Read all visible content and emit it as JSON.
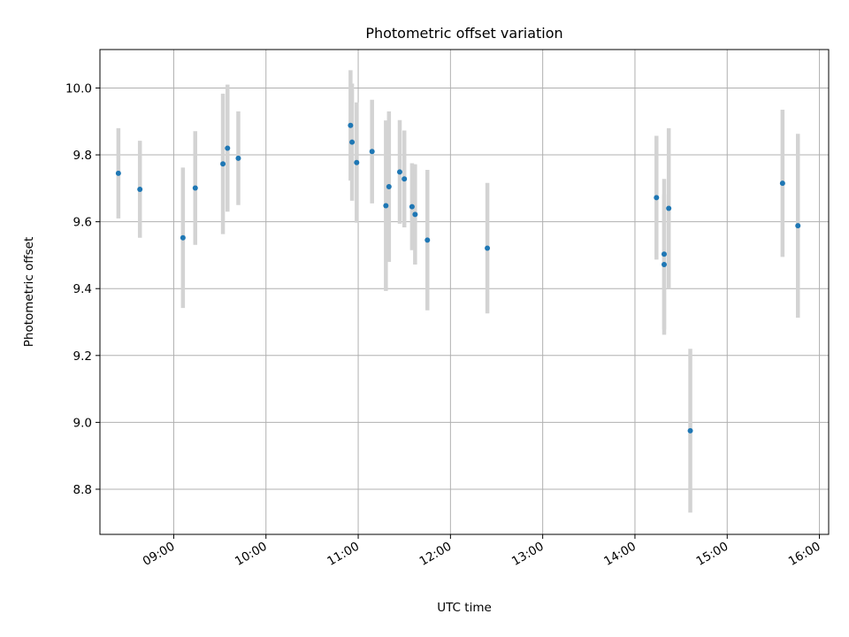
{
  "chart_data": {
    "type": "scatter",
    "title": "Photometric offset variation",
    "xlabel": "UTC time",
    "ylabel": "Photometric offset",
    "xlim": [
      "08:12",
      "16:06"
    ],
    "ylim": [
      8.665,
      10.115
    ],
    "x_ticks": [
      "09:00",
      "10:00",
      "11:00",
      "12:00",
      "13:00",
      "14:00",
      "15:00",
      "16:00"
    ],
    "y_ticks": [
      8.8,
      9.0,
      9.2,
      9.4,
      9.6,
      9.8,
      10.0
    ],
    "y_tick_labels": [
      "8.8",
      "9.0",
      "9.2",
      "9.4",
      "9.6",
      "9.8",
      "10.0"
    ],
    "grid": true,
    "colors": {
      "marker": "#1f77b4",
      "errorbar": "#d3d3d3"
    },
    "series": [
      {
        "points": [
          {
            "x": "08:24",
            "y": 9.745,
            "yerr": 0.135
          },
          {
            "x": "08:38",
            "y": 9.697,
            "yerr": 0.145
          },
          {
            "x": "09:06",
            "y": 9.552,
            "yerr": 0.21
          },
          {
            "x": "09:14",
            "y": 9.701,
            "yerr": 0.17
          },
          {
            "x": "09:32",
            "y": 9.773,
            "yerr": 0.21
          },
          {
            "x": "09:35",
            "y": 9.82,
            "yerr": 0.19
          },
          {
            "x": "09:42",
            "y": 9.79,
            "yerr": 0.14
          },
          {
            "x": "10:55",
            "y": 9.888,
            "yerr": 0.165
          },
          {
            "x": "10:56",
            "y": 9.838,
            "yerr": 0.175
          },
          {
            "x": "10:59",
            "y": 9.777,
            "yerr": 0.18
          },
          {
            "x": "11:09",
            "y": 9.81,
            "yerr": 0.155
          },
          {
            "x": "11:18",
            "y": 9.648,
            "yerr": 0.255
          },
          {
            "x": "11:20",
            "y": 9.705,
            "yerr": 0.225
          },
          {
            "x": "11:27",
            "y": 9.749,
            "yerr": 0.155
          },
          {
            "x": "11:30",
            "y": 9.728,
            "yerr": 0.145
          },
          {
            "x": "11:35",
            "y": 9.645,
            "yerr": 0.13
          },
          {
            "x": "11:37",
            "y": 9.622,
            "yerr": 0.15
          },
          {
            "x": "11:45",
            "y": 9.545,
            "yerr": 0.21
          },
          {
            "x": "12:24",
            "y": 9.521,
            "yerr": 0.195
          },
          {
            "x": "14:14",
            "y": 9.672,
            "yerr": 0.185
          },
          {
            "x": "14:19",
            "y": 9.503,
            "yerr": 0.225
          },
          {
            "x": "14:19",
            "y": 9.472,
            "yerr": 0.21
          },
          {
            "x": "14:22",
            "y": 9.64,
            "yerr": 0.24
          },
          {
            "x": "14:36",
            "y": 8.975,
            "yerr": 0.245
          },
          {
            "x": "15:36",
            "y": 9.715,
            "yerr": 0.22
          },
          {
            "x": "15:46",
            "y": 9.588,
            "yerr": 0.275
          }
        ]
      }
    ]
  }
}
